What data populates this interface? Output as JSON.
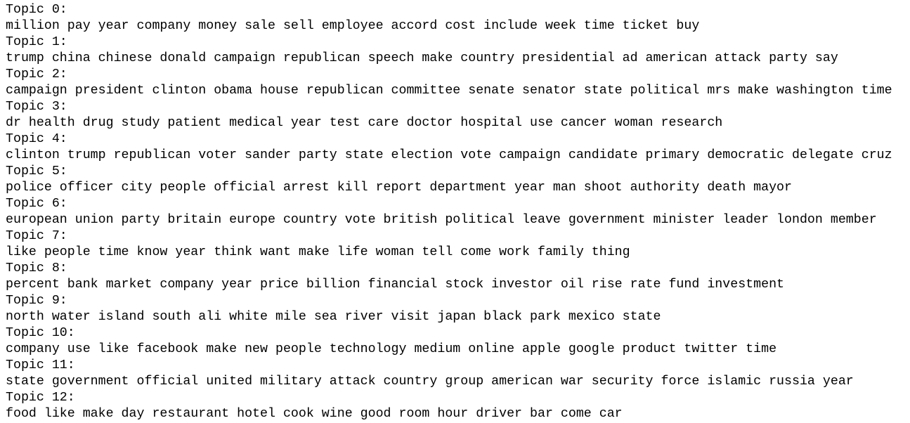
{
  "topics": [
    {
      "label": "Topic 0:",
      "words": "million pay year company money sale sell employee accord cost include week time ticket buy"
    },
    {
      "label": "Topic 1:",
      "words": "trump china chinese donald campaign republican speech make country presidential ad american attack party say"
    },
    {
      "label": "Topic 2:",
      "words": "campaign president clinton obama house republican committee senate senator state political mrs make washington time"
    },
    {
      "label": "Topic 3:",
      "words": "dr health drug study patient medical year test care doctor hospital use cancer woman research"
    },
    {
      "label": "Topic 4:",
      "words": "clinton trump republican voter sander party state election vote campaign candidate primary democratic delegate cruz"
    },
    {
      "label": "Topic 5:",
      "words": "police officer city people official arrest kill report department year man shoot authority death mayor"
    },
    {
      "label": "Topic 6:",
      "words": "european union party britain europe country vote british political leave government minister leader london member"
    },
    {
      "label": "Topic 7:",
      "words": "like people time know year think want make life woman tell come work family thing"
    },
    {
      "label": "Topic 8:",
      "words": "percent bank market company year price billion financial stock investor oil rise rate fund investment"
    },
    {
      "label": "Topic 9:",
      "words": "north water island south ali white mile sea river visit japan black park mexico state"
    },
    {
      "label": "Topic 10:",
      "words": "company use like facebook make new people technology medium online apple google product twitter time"
    },
    {
      "label": "Topic 11:",
      "words": "state government official united military attack country group american war security force islamic russia year"
    },
    {
      "label": "Topic 12:",
      "words": "food like make day restaurant hotel cook wine good room hour driver bar come car"
    }
  ]
}
